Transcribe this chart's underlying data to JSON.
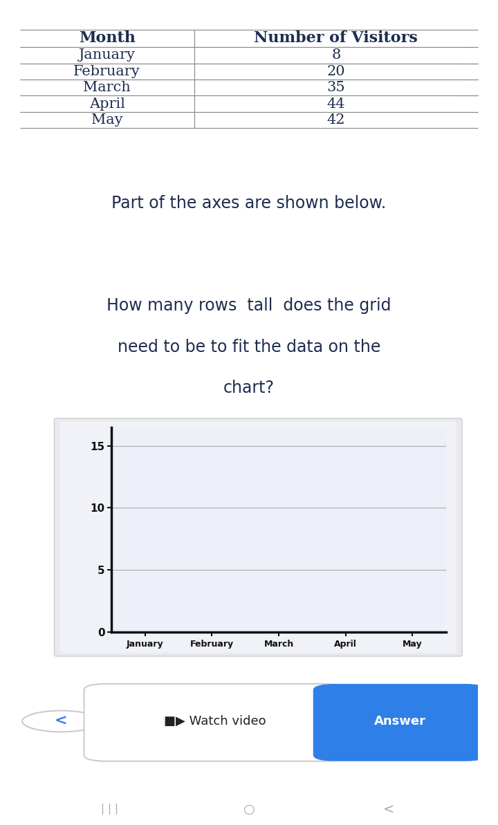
{
  "bg_color": "#ffffff",
  "table_headers": [
    "Month",
    "Number of Visitors"
  ],
  "table_rows": [
    [
      "January",
      "8"
    ],
    [
      "February",
      "20"
    ],
    [
      "March",
      "35"
    ],
    [
      "April",
      "44"
    ],
    [
      "May",
      "42"
    ]
  ],
  "text1": "Part of the axes are shown below.",
  "chart_yticks": [
    0,
    5,
    10,
    15
  ],
  "chart_xticks": [
    "January",
    "February",
    "March",
    "April",
    "May"
  ],
  "chart_ylim": [
    0,
    16.5
  ],
  "header_color": "#1e2d4f",
  "body_color": "#1e2d4f",
  "button_answer_color": "#2f7fe8",
  "navbar_color": "#2d2d2d",
  "chart_axis_color": "#111111"
}
